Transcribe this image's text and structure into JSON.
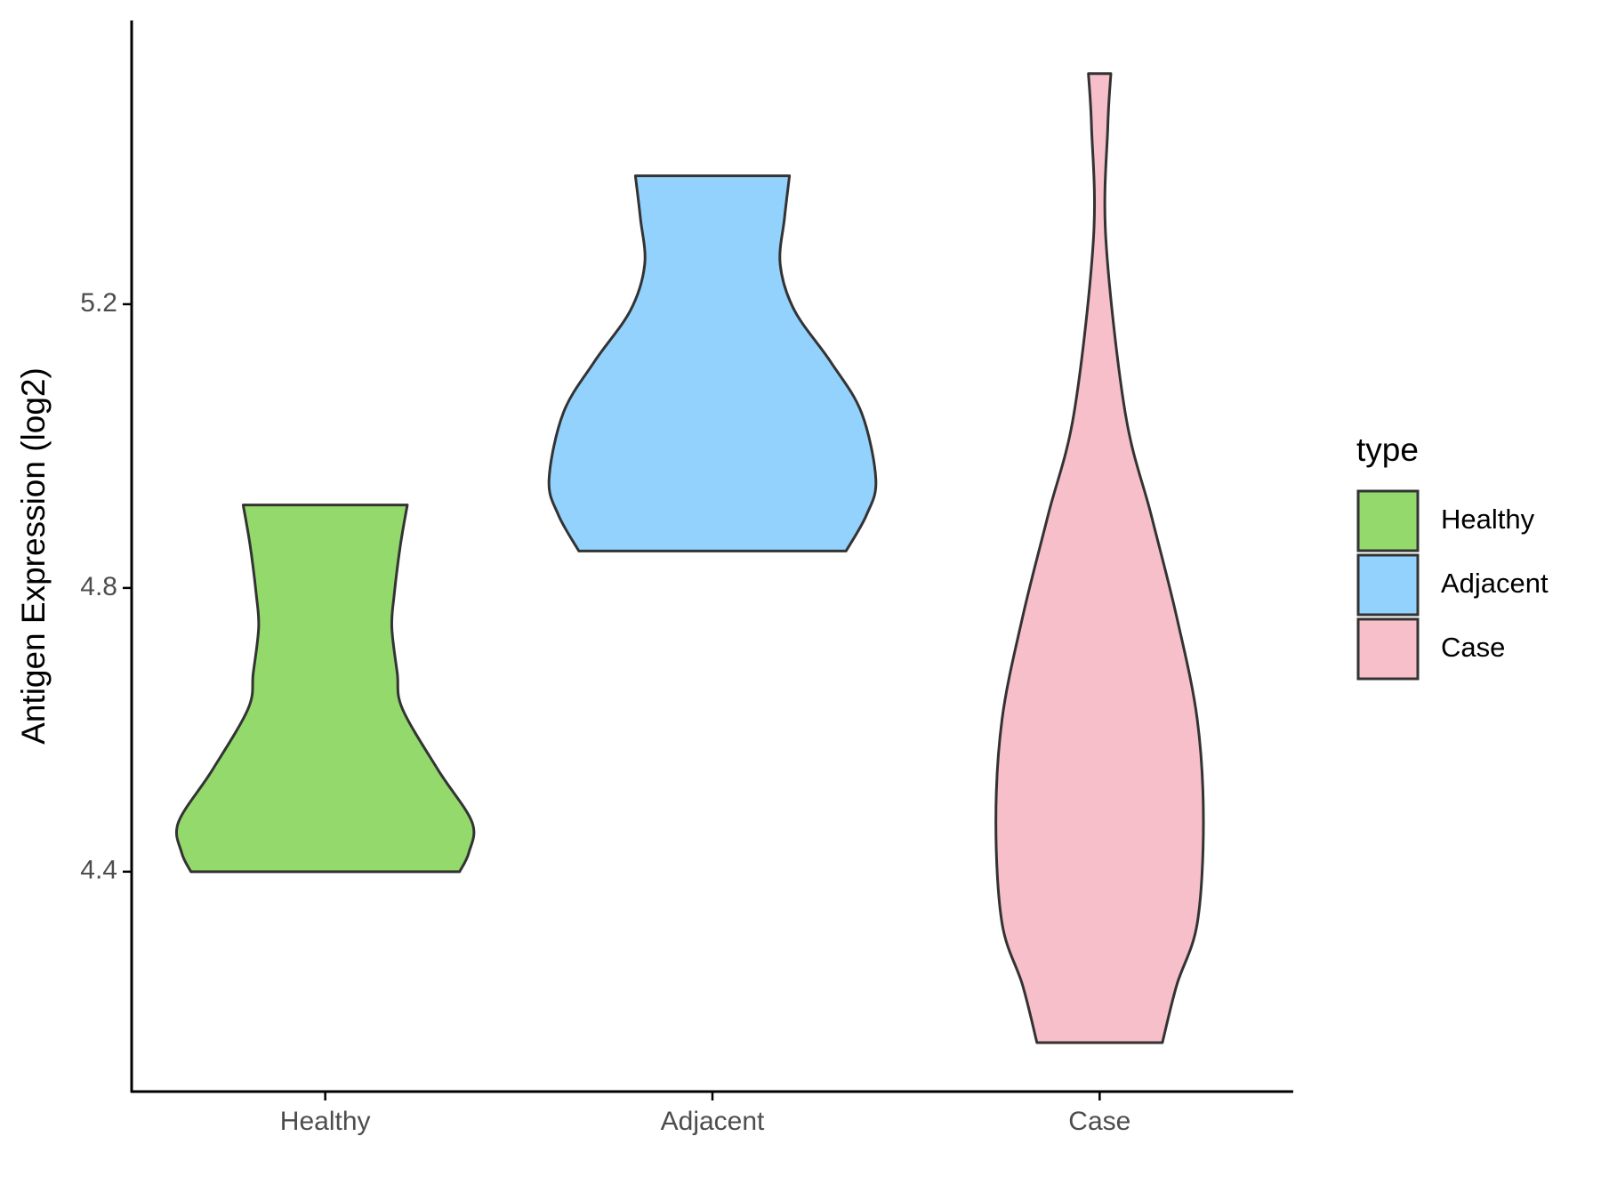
{
  "chart_data": {
    "type": "violin",
    "y_label": "Antigen Expression (log2)",
    "legend_title": "type",
    "legend_position": "right",
    "ylim": [
      4.09,
      5.6
    ],
    "yticks": [
      4.4,
      4.8,
      5.2
    ],
    "series": [
      {
        "name": "Healthy",
        "color": "#93d96c",
        "y": [
          4.917,
          4.86,
          4.79,
          4.744,
          4.68,
          4.63,
          4.543,
          4.47,
          4.427,
          4.4
        ],
        "width": [
          0.212,
          0.194,
          0.178,
          0.172,
          0.186,
          0.199,
          0.292,
          0.379,
          0.371,
          0.347
        ]
      },
      {
        "name": "Adjacent",
        "color": "#93d2fd",
        "y": [
          5.381,
          5.321,
          5.256,
          5.191,
          5.119,
          5.047,
          4.953,
          4.903,
          4.852
        ],
        "width": [
          0.199,
          0.186,
          0.175,
          0.212,
          0.305,
          0.385,
          0.422,
          0.398,
          0.345
        ]
      },
      {
        "name": "Case",
        "color": "#f7bfca",
        "y": [
          5.525,
          5.45,
          5.292,
          5.047,
          4.903,
          4.759,
          4.615,
          4.471,
          4.327,
          4.24,
          4.159
        ],
        "width": [
          0.029,
          0.021,
          0.016,
          0.066,
          0.133,
          0.199,
          0.252,
          0.268,
          0.252,
          0.199,
          0.162
        ]
      }
    ]
  }
}
